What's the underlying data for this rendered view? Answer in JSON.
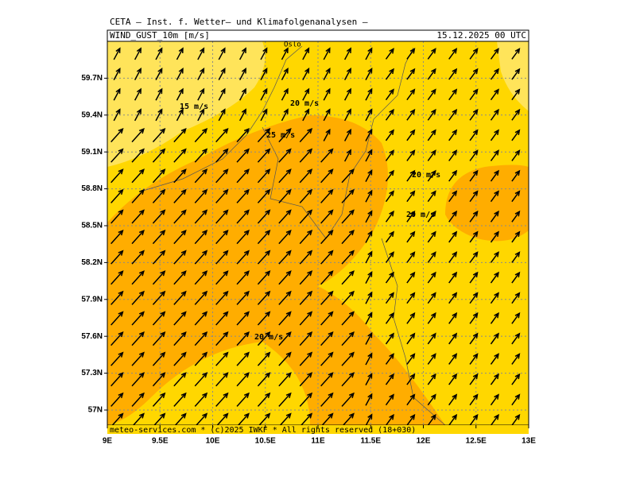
{
  "header": {
    "title": "CETA — Inst. f. Wetter— und Klimafolgenanalysen —",
    "parameter": "WIND_GUST_10m [m/s]",
    "valid_time": "15.12.2025 00 UTC"
  },
  "map": {
    "xlim": [
      9,
      13
    ],
    "ylim": [
      56.877,
      60.0
    ],
    "xticks": [
      {
        "value": 9,
        "label": "9E"
      },
      {
        "value": 9.5,
        "label": "9.5E"
      },
      {
        "value": 10,
        "label": "10E"
      },
      {
        "value": 10.5,
        "label": "10.5E"
      },
      {
        "value": 11,
        "label": "11E"
      },
      {
        "value": 11.5,
        "label": "11.5E"
      },
      {
        "value": 12,
        "label": "12E"
      },
      {
        "value": 12.5,
        "label": "12.5E"
      },
      {
        "value": 13,
        "label": "13E"
      }
    ],
    "yticks": [
      {
        "value": 57,
        "label": "57N"
      },
      {
        "value": 57.3,
        "label": "57.3N"
      },
      {
        "value": 57.6,
        "label": "57.6N"
      },
      {
        "value": 57.9,
        "label": "57.9N"
      },
      {
        "value": 58.2,
        "label": "58.2N"
      },
      {
        "value": 58.5,
        "label": "58.5N"
      },
      {
        "value": 58.8,
        "label": "58.8N"
      },
      {
        "value": 59.1,
        "label": "59.1N"
      },
      {
        "value": 59.4,
        "label": "59.4N"
      },
      {
        "value": 59.7,
        "label": "59.7N"
      }
    ],
    "place_labels": [
      "Oslo"
    ],
    "contour_labels": [
      "15 m/s",
      "20 m/s",
      "25 m/s",
      "20 m/s",
      "20 m/s",
      "20 m/s"
    ]
  },
  "footer": "meteo-services.com * (c)2025 IWKF * All rights reserved (18+030)"
}
